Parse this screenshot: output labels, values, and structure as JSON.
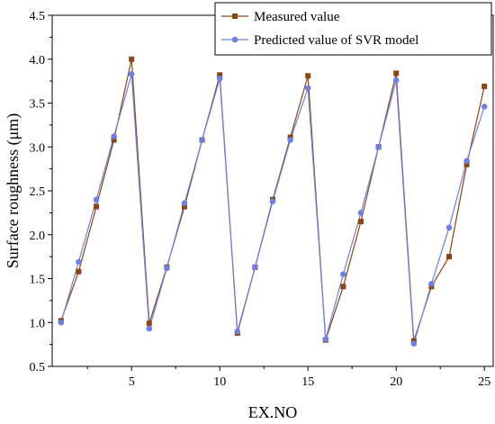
{
  "chart_data": {
    "type": "line",
    "xlabel": "EX.NO",
    "ylabel": "Surface roughness (μm)",
    "xlim": [
      0.5,
      25.5
    ],
    "ylim": [
      0.5,
      4.5
    ],
    "xticks": [
      5,
      10,
      15,
      20,
      25
    ],
    "yticks": [
      0.5,
      1.0,
      1.5,
      2.0,
      2.5,
      3.0,
      3.5,
      4.0,
      4.5
    ],
    "grid": false,
    "legend_position": "top-right",
    "x": [
      1,
      2,
      3,
      4,
      5,
      6,
      7,
      8,
      9,
      10,
      11,
      12,
      13,
      14,
      15,
      16,
      17,
      18,
      19,
      20,
      21,
      22,
      23,
      24,
      25
    ],
    "series": [
      {
        "name": "Measured value",
        "color": "#8b4513",
        "marker": "square",
        "values": [
          1.02,
          1.58,
          2.32,
          3.08,
          4.0,
          0.99,
          1.63,
          2.32,
          3.08,
          3.82,
          0.88,
          1.63,
          2.4,
          3.11,
          3.81,
          0.8,
          1.41,
          2.15,
          3.0,
          3.84,
          0.79,
          1.41,
          1.75,
          2.8,
          3.69
        ]
      },
      {
        "name": "Predicted value of SVR model",
        "color": "#6f80e0",
        "marker": "circle",
        "values": [
          1.0,
          1.69,
          2.4,
          3.12,
          3.83,
          0.93,
          1.62,
          2.36,
          3.08,
          3.78,
          0.9,
          1.63,
          2.38,
          3.08,
          3.67,
          0.81,
          1.55,
          2.25,
          3.0,
          3.76,
          0.76,
          1.44,
          2.08,
          2.84,
          3.46
        ]
      }
    ]
  }
}
